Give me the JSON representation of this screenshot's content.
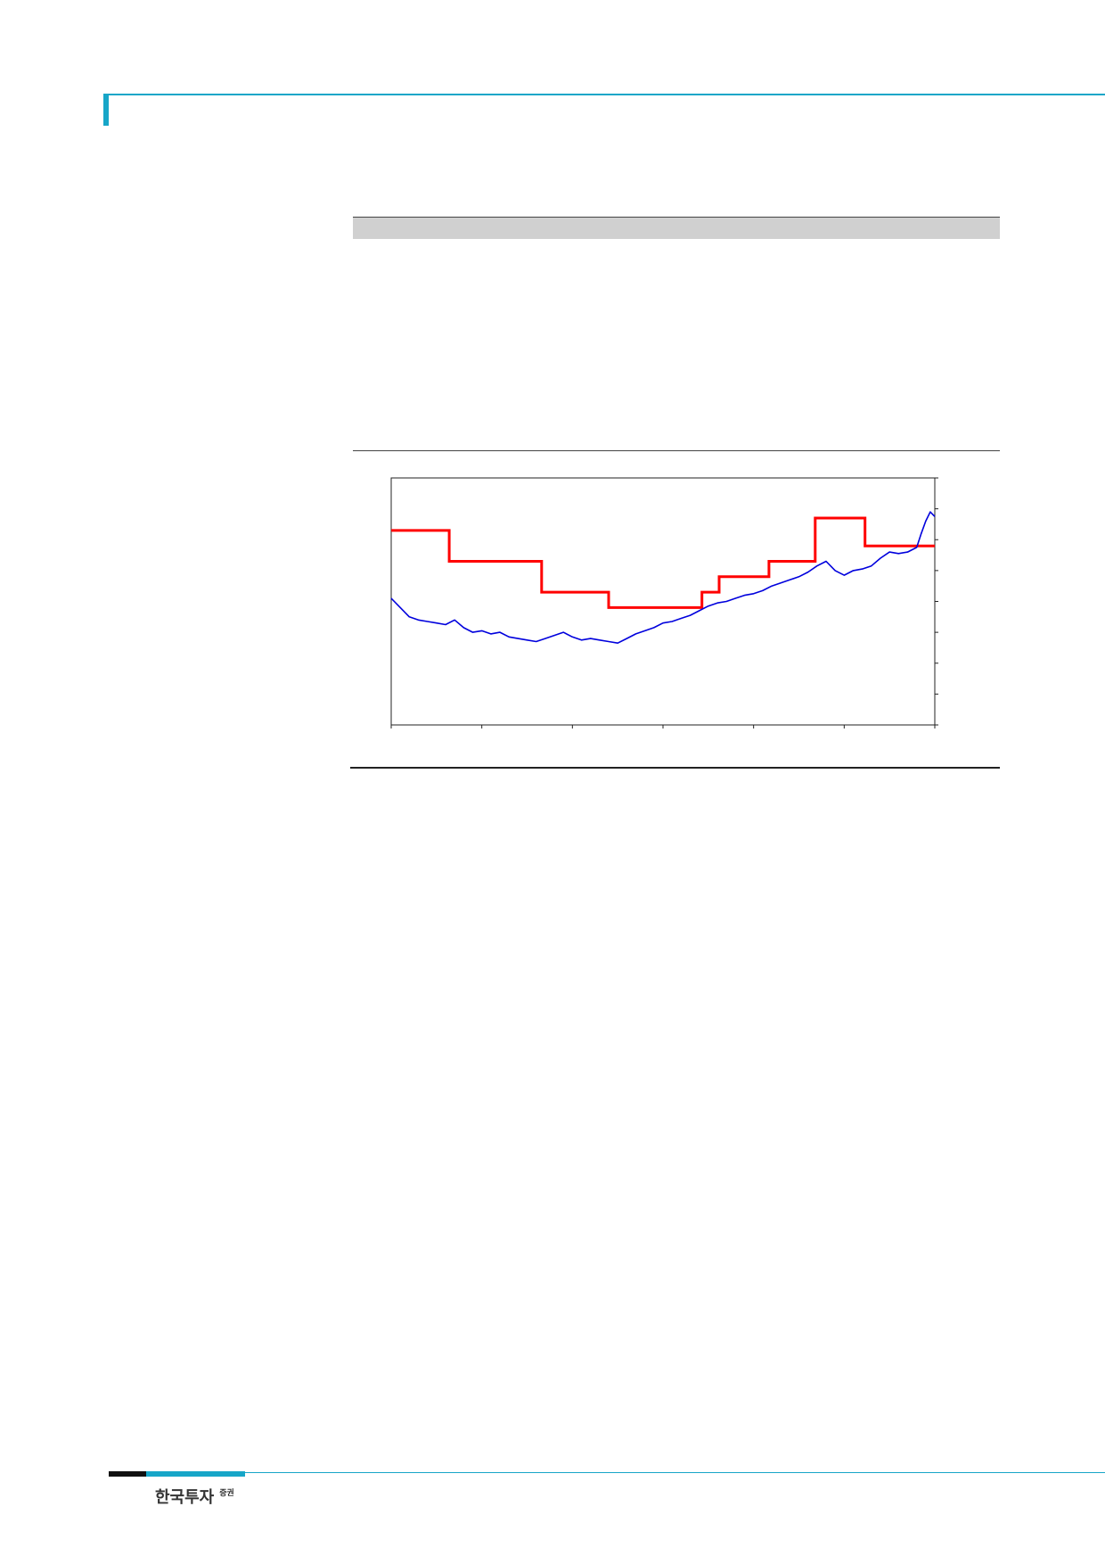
{
  "footer": {
    "brand": "한국투자",
    "brand_suffix": "증권"
  },
  "colors": {
    "accent": "#17a6c8",
    "series_red": "#ff0000",
    "series_blue": "#0000dd"
  },
  "chart_data": {
    "type": "line",
    "title": "",
    "xlabel": "",
    "ylabel": "",
    "xlim": [
      0,
      6
    ],
    "ylim": [
      0,
      8
    ],
    "x_ticks": [
      0,
      1,
      2,
      3,
      4,
      5,
      6
    ],
    "y_ticks": [
      0,
      1,
      2,
      3,
      4,
      5,
      6,
      7,
      8
    ],
    "grid": false,
    "legend": "none",
    "series": [
      {
        "style": "step",
        "color": "#ff0000",
        "points": [
          [
            0,
            6.3
          ],
          [
            0.64,
            6.3
          ],
          [
            0.64,
            5.3
          ],
          [
            1.66,
            5.3
          ],
          [
            1.66,
            4.3
          ],
          [
            2.4,
            4.3
          ],
          [
            2.4,
            3.8
          ],
          [
            3.43,
            3.8
          ],
          [
            3.43,
            4.3
          ],
          [
            3.62,
            4.3
          ],
          [
            3.62,
            4.8
          ],
          [
            4.17,
            4.8
          ],
          [
            4.17,
            5.3
          ],
          [
            4.68,
            5.3
          ],
          [
            4.68,
            6.7
          ],
          [
            5.23,
            6.7
          ],
          [
            5.23,
            5.8
          ],
          [
            6.0,
            5.8
          ]
        ]
      },
      {
        "style": "line",
        "color": "#0000dd",
        "points": [
          [
            0,
            4.1
          ],
          [
            0.1,
            3.8
          ],
          [
            0.2,
            3.5
          ],
          [
            0.3,
            3.4
          ],
          [
            0.4,
            3.35
          ],
          [
            0.5,
            3.3
          ],
          [
            0.6,
            3.25
          ],
          [
            0.7,
            3.4
          ],
          [
            0.8,
            3.15
          ],
          [
            0.9,
            3.0
          ],
          [
            1.0,
            3.05
          ],
          [
            1.1,
            2.95
          ],
          [
            1.2,
            3.0
          ],
          [
            1.3,
            2.85
          ],
          [
            1.4,
            2.8
          ],
          [
            1.5,
            2.75
          ],
          [
            1.6,
            2.7
          ],
          [
            1.7,
            2.8
          ],
          [
            1.8,
            2.9
          ],
          [
            1.9,
            3.0
          ],
          [
            2.0,
            2.85
          ],
          [
            2.1,
            2.75
          ],
          [
            2.2,
            2.8
          ],
          [
            2.3,
            2.75
          ],
          [
            2.4,
            2.7
          ],
          [
            2.5,
            2.65
          ],
          [
            2.6,
            2.8
          ],
          [
            2.7,
            2.95
          ],
          [
            2.8,
            3.05
          ],
          [
            2.9,
            3.15
          ],
          [
            3.0,
            3.3
          ],
          [
            3.1,
            3.35
          ],
          [
            3.2,
            3.45
          ],
          [
            3.3,
            3.55
          ],
          [
            3.4,
            3.7
          ],
          [
            3.5,
            3.85
          ],
          [
            3.6,
            3.95
          ],
          [
            3.7,
            4.0
          ],
          [
            3.8,
            4.1
          ],
          [
            3.9,
            4.2
          ],
          [
            4.0,
            4.25
          ],
          [
            4.1,
            4.35
          ],
          [
            4.2,
            4.5
          ],
          [
            4.3,
            4.6
          ],
          [
            4.4,
            4.7
          ],
          [
            4.5,
            4.8
          ],
          [
            4.6,
            4.95
          ],
          [
            4.7,
            5.15
          ],
          [
            4.8,
            5.3
          ],
          [
            4.9,
            5.0
          ],
          [
            5.0,
            4.85
          ],
          [
            5.1,
            5.0
          ],
          [
            5.2,
            5.05
          ],
          [
            5.3,
            5.15
          ],
          [
            5.4,
            5.4
          ],
          [
            5.5,
            5.6
          ],
          [
            5.6,
            5.55
          ],
          [
            5.7,
            5.6
          ],
          [
            5.8,
            5.75
          ],
          [
            5.85,
            6.2
          ],
          [
            5.9,
            6.6
          ],
          [
            5.95,
            6.9
          ],
          [
            6.0,
            6.75
          ]
        ]
      }
    ]
  }
}
